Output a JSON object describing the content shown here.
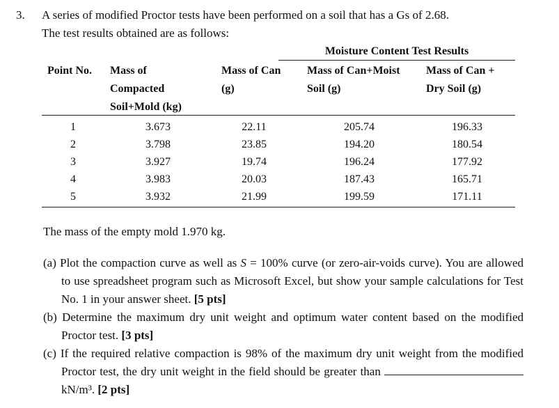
{
  "problem": {
    "number": "3.",
    "intro": [
      "A series of modified Proctor tests have been performed on a soil that has a Gs of 2.68.",
      "The test results obtained are as follows:"
    ]
  },
  "table": {
    "group_header": "Moisture Content Test Results",
    "headers": [
      [
        "Point No."
      ],
      [
        "Mass of",
        "Compacted",
        "Soil+Mold (kg)"
      ],
      [
        "Mass of Can",
        "(g)"
      ],
      [
        "Mass of Can+Moist",
        "Soil (g)"
      ],
      [
        "Mass of Can +",
        "Dry Soil (g)"
      ]
    ],
    "rows": [
      [
        "1",
        "3.673",
        "22.11",
        "205.74",
        "196.33"
      ],
      [
        "2",
        "3.798",
        "23.85",
        "194.20",
        "180.54"
      ],
      [
        "3",
        "3.927",
        "19.74",
        "196.24",
        "177.92"
      ],
      [
        "4",
        "3.983",
        "20.03",
        "187.43",
        "165.71"
      ],
      [
        "5",
        "3.932",
        "21.99",
        "199.59",
        "171.11"
      ]
    ]
  },
  "note": "The mass of the empty mold 1.970 kg.",
  "parts": [
    {
      "label": "(a)",
      "text": "Plot the compaction curve as well as",
      "symbol": "S",
      "text2": "= 100% curve (or zero-air-voids curve). You are allowed to use spreadsheet program such as Microsoft Excel, but show your sample calculations for Test No. 1 in your answer sheet.",
      "points": "[5 pts]"
    },
    {
      "label": "(b)",
      "text": "Determine the maximum dry unit weight and optimum water content based on the modified Proctor test.",
      "points": "[3 pts]"
    },
    {
      "label": "(c)",
      "text": "If the required relative compaction is 98% of the maximum dry unit weight from the modified Proctor test, the dry unit weight in the field should be greater than",
      "unit": "kN/m³.",
      "points": "[2 pts]"
    }
  ]
}
